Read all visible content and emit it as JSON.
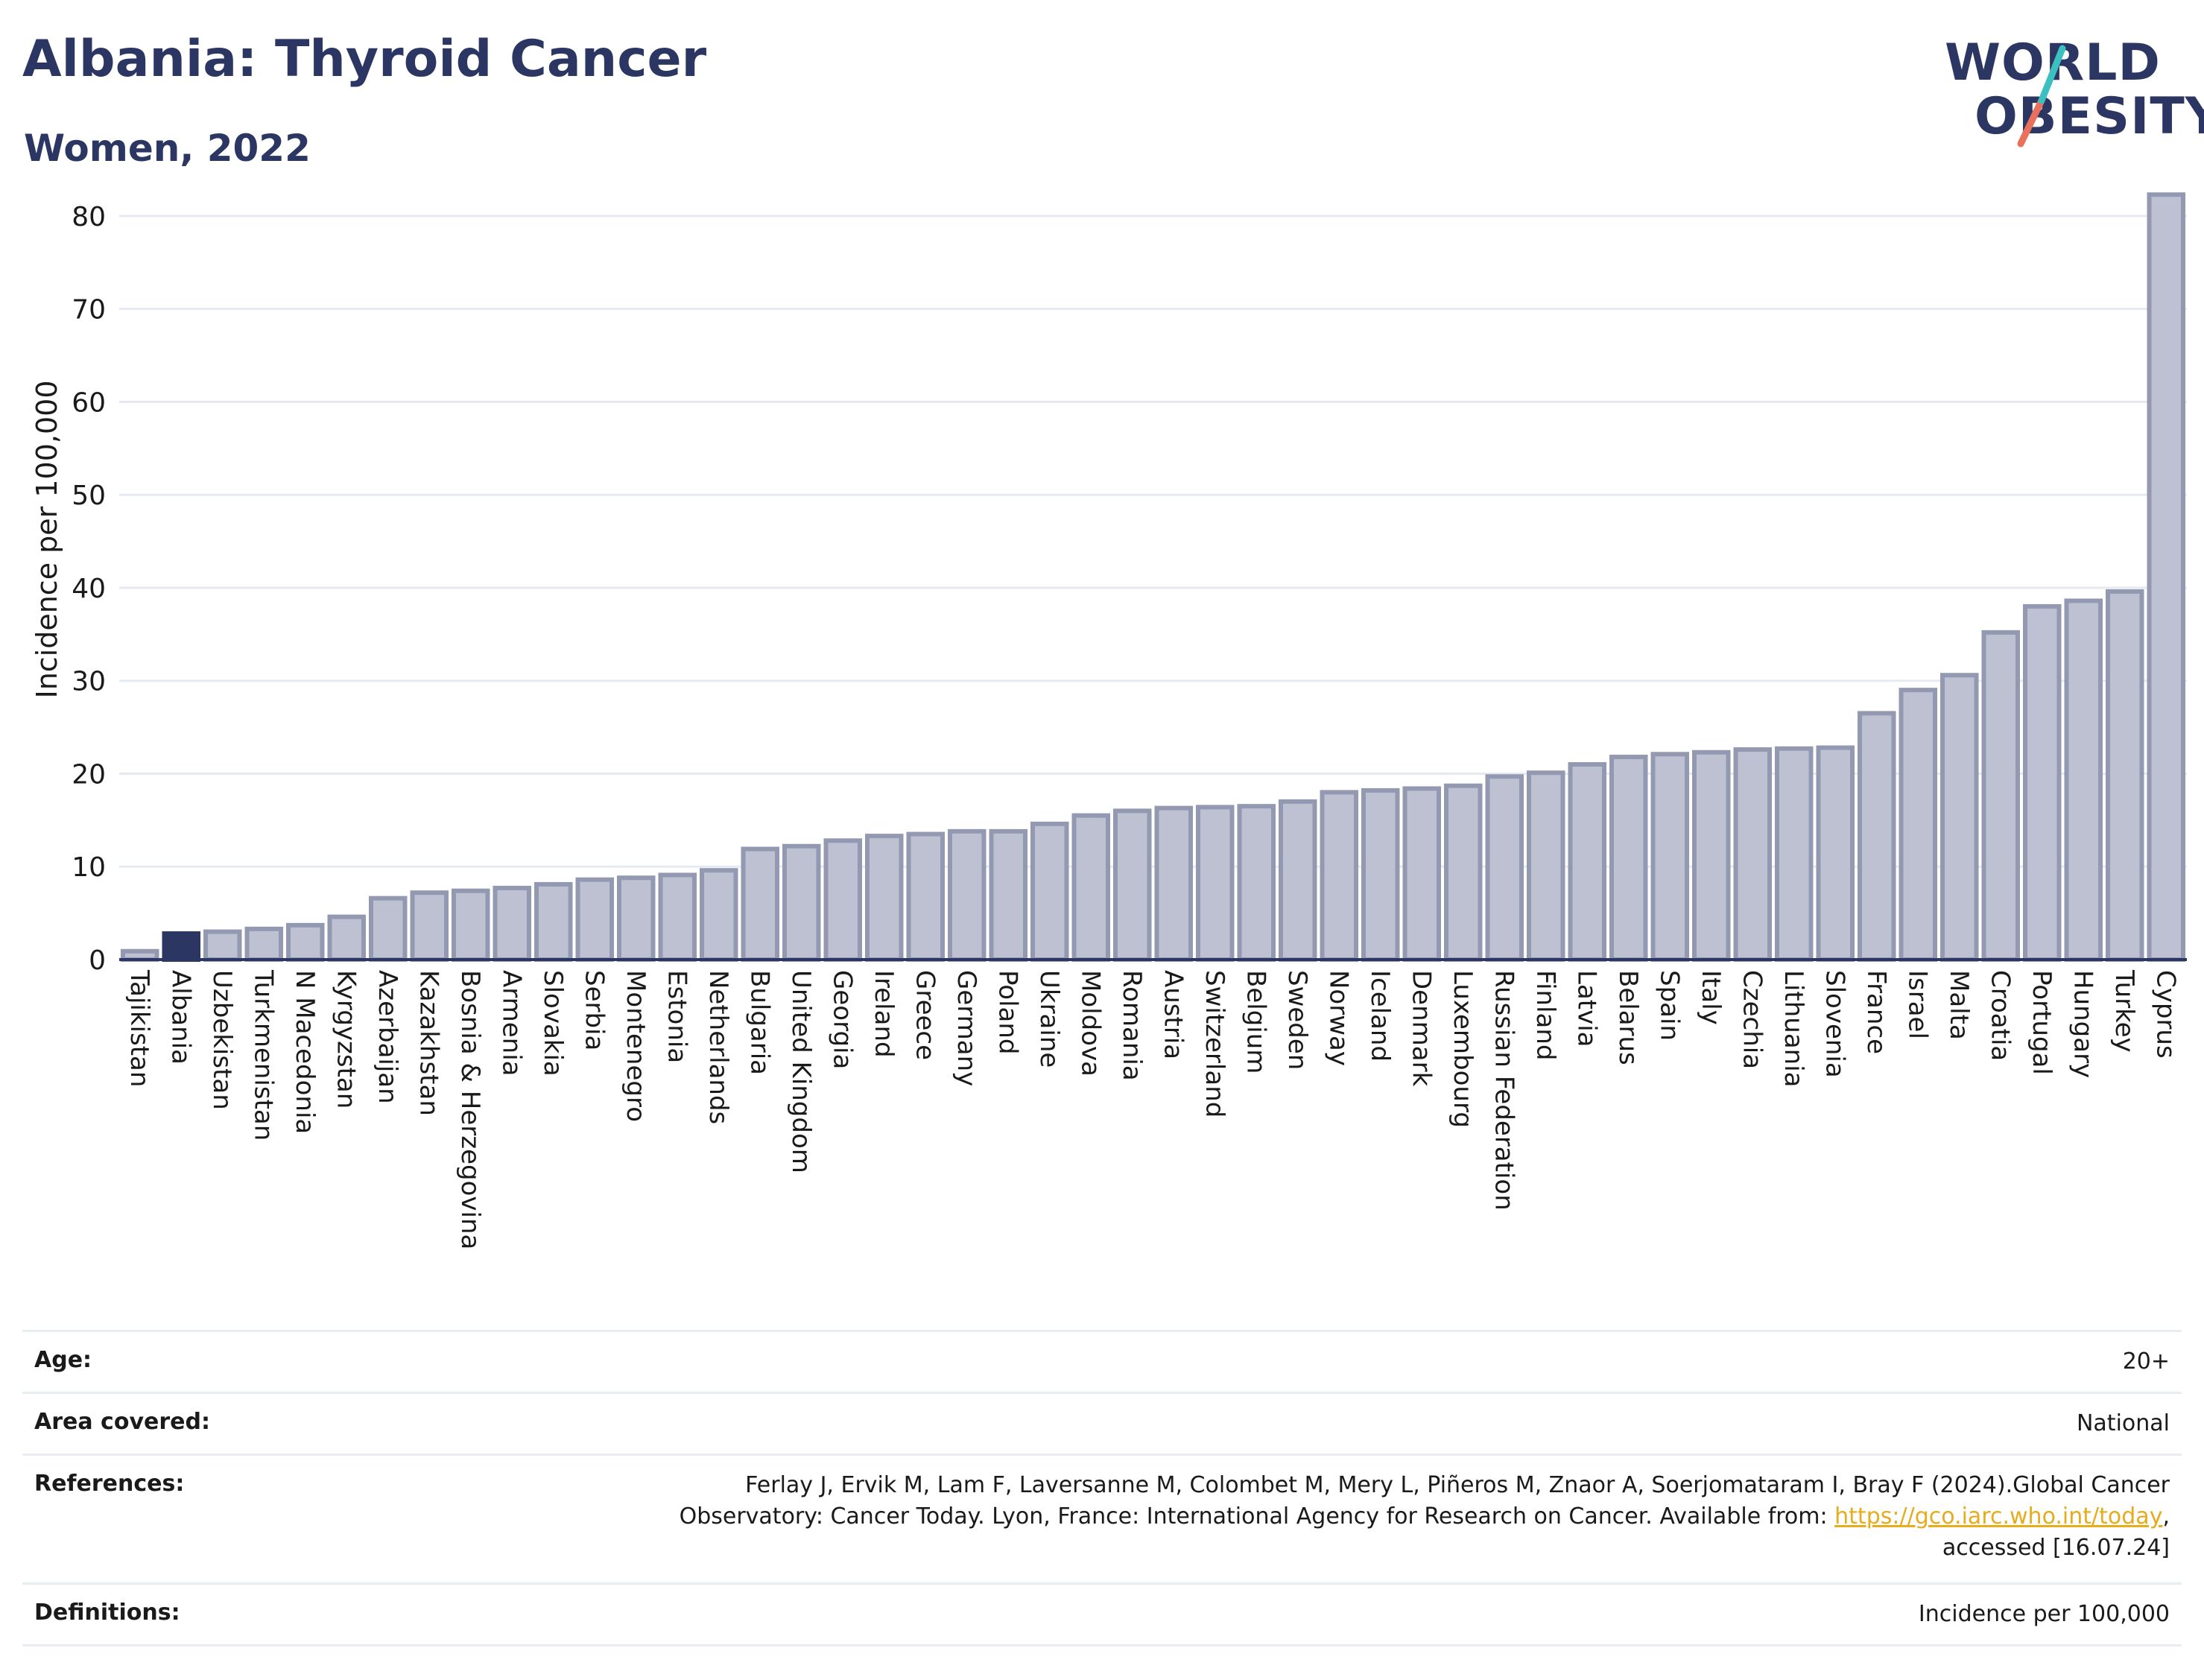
{
  "header": {
    "title": "Albania: Thyroid Cancer",
    "subtitle": "Women, 2022",
    "logo_line1": "WORLD",
    "logo_line2": "OBESITY"
  },
  "colors": {
    "highlight": "#2b3663",
    "bar_fill": "#bdc1d1",
    "bar_stroke": "#9499b2",
    "title": "#2b3663",
    "logo_teal": "#3bbfc0",
    "logo_coral": "#e8705c"
  },
  "chart_data": {
    "type": "bar",
    "ylabel": "Incidence per 100,000",
    "ylim": [
      0,
      84
    ],
    "yticks": [
      0,
      10,
      20,
      30,
      40,
      50,
      60,
      70,
      80
    ],
    "highlight": "Albania",
    "grid": true,
    "categories": [
      "Tajikistan",
      "Albania",
      "Uzbekistan",
      "Turkmenistan",
      "N Macedonia",
      "Kyrgyzstan",
      "Azerbaijan",
      "Kazakhstan",
      "Bosnia & Herzegovina",
      "Armenia",
      "Slovakia",
      "Serbia",
      "Montenegro",
      "Estonia",
      "Netherlands",
      "Bulgaria",
      "United Kingdom",
      "Georgia",
      "Ireland",
      "Greece",
      "Germany",
      "Poland",
      "Ukraine",
      "Moldova",
      "Romania",
      "Austria",
      "Switzerland",
      "Belgium",
      "Sweden",
      "Norway",
      "Iceland",
      "Denmark",
      "Luxembourg",
      "Russian Federation",
      "Finland",
      "Latvia",
      "Belarus",
      "Spain",
      "Italy",
      "Czechia",
      "Lithuania",
      "Slovenia",
      "France",
      "Israel",
      "Malta",
      "Croatia",
      "Portugal",
      "Hungary",
      "Turkey",
      "Cyprus"
    ],
    "values": [
      0.9,
      2.8,
      3.0,
      3.3,
      3.7,
      4.6,
      6.6,
      7.2,
      7.4,
      7.7,
      8.1,
      8.6,
      8.8,
      9.1,
      9.6,
      11.9,
      12.2,
      12.8,
      13.3,
      13.5,
      13.8,
      13.8,
      14.6,
      15.5,
      16.0,
      16.3,
      16.4,
      16.5,
      17.0,
      18.0,
      18.2,
      18.4,
      18.7,
      19.7,
      20.1,
      21.0,
      21.8,
      22.1,
      22.3,
      22.6,
      22.7,
      22.8,
      26.5,
      29.0,
      30.6,
      35.2,
      38.0,
      38.6,
      39.6,
      82.3
    ]
  },
  "info": {
    "age_label": "Age:",
    "age_value": "20+",
    "area_label": "Area covered:",
    "area_value": "National",
    "references_label": "References:",
    "references_line1": "Ferlay J, Ervik M, Lam F, Laversanne M, Colombet M, Mery L, Piñeros M, Znaor A, Soerjomataram I, Bray F (2024).Global Cancer",
    "references_line2_pre": "Observatory: Cancer Today. Lyon, France: International Agency for Research on Cancer. Available from: ",
    "references_link": "https://gco.iarc.who.int/today",
    "references_line2_post": ",",
    "references_line3": "accessed [16.07.24]",
    "definitions_label": "Definitions:",
    "definitions_value": "Incidence per 100,000"
  }
}
